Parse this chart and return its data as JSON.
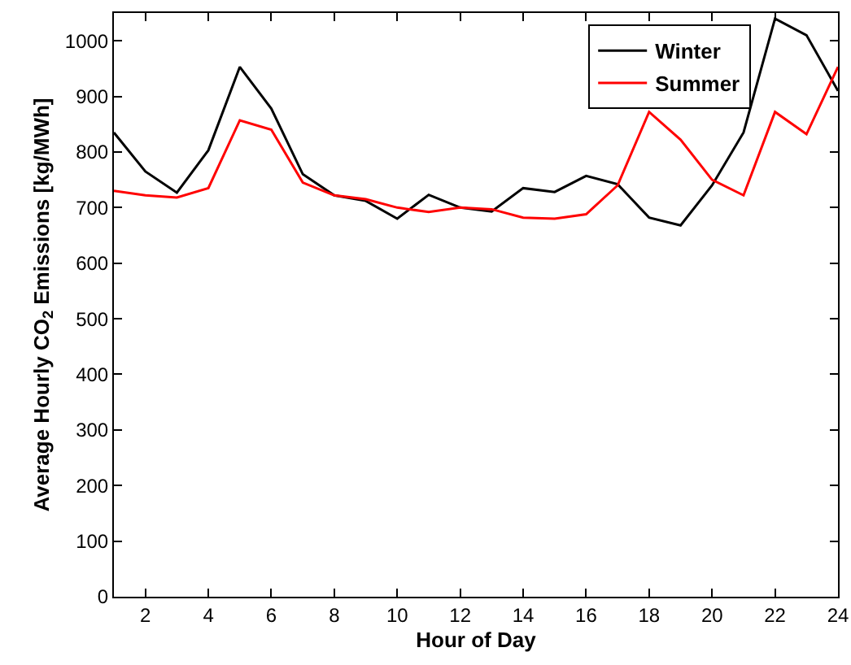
{
  "chart_data": {
    "type": "line",
    "xlabel": "Hour of Day",
    "ylabel": "Average Hourly CO$_{2}$ Emissions [kg/MWh]",
    "x": [
      1,
      2,
      3,
      4,
      5,
      6,
      7,
      8,
      9,
      10,
      11,
      12,
      13,
      14,
      15,
      16,
      17,
      18,
      19,
      20,
      21,
      22,
      23,
      24
    ],
    "series": [
      {
        "name": "Winter",
        "color": "#000000",
        "values": [
          835,
          765,
          727,
          803,
          953,
          878,
          760,
          722,
          712,
          680,
          723,
          700,
          693,
          735,
          728,
          757,
          742,
          682,
          668,
          740,
          835,
          1040,
          1010,
          910
        ]
      },
      {
        "name": "Summer",
        "color": "#ff0000",
        "values": [
          730,
          722,
          718,
          735,
          857,
          840,
          745,
          722,
          715,
          700,
          692,
          700,
          697,
          682,
          680,
          688,
          740,
          872,
          822,
          750,
          722,
          872,
          832,
          953
        ]
      }
    ],
    "xlim": [
      1,
      24
    ],
    "xticks": [
      2,
      4,
      6,
      8,
      10,
      12,
      14,
      16,
      18,
      20,
      22,
      24
    ],
    "ylim": [
      0,
      1050
    ],
    "yticks": [
      0,
      100,
      200,
      300,
      400,
      500,
      600,
      700,
      800,
      900,
      1000
    ],
    "grid": false,
    "legend": "top right",
    "marker": "none",
    "line_style": "solid"
  }
}
